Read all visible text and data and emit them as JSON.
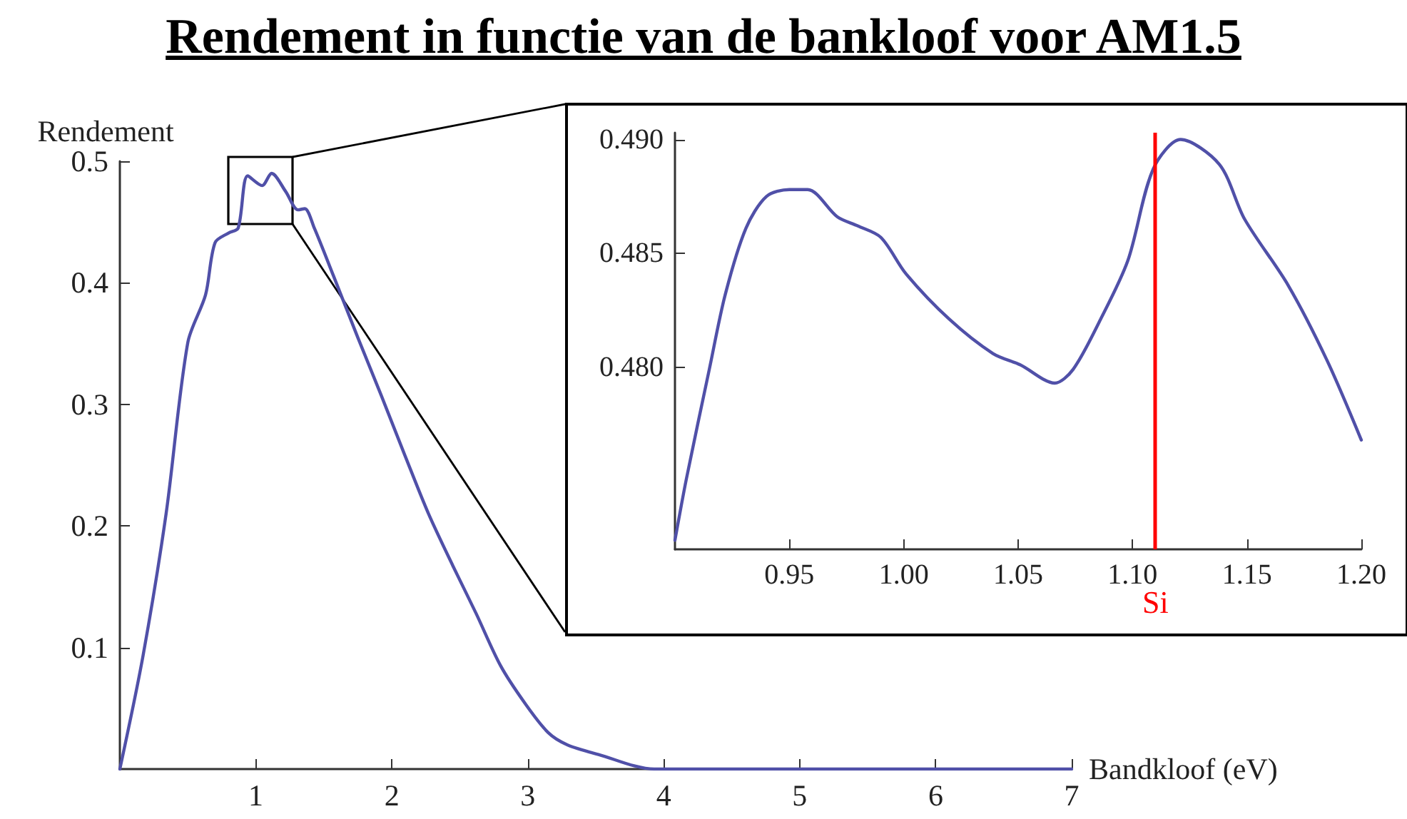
{
  "chart_data": [
    {
      "type": "line",
      "title": "Rendement in functie van de bankloof voor AM1.5",
      "xlabel": "Bandkloof (eV)",
      "ylabel": "Rendement",
      "x": [
        0,
        0.17,
        0.34,
        0.5,
        0.63,
        0.7,
        0.8,
        0.87,
        0.94,
        1.046,
        1.116,
        1.22,
        1.31,
        1.36,
        1.43,
        1.57,
        1.75,
        1.92,
        2.1,
        2.27,
        2.45,
        2.62,
        2.8,
        2.98,
        3.15,
        3.29,
        3.52,
        3.93,
        5,
        7
      ],
      "series": [
        {
          "color": "#5050a8",
          "values": [
            0,
            0.093,
            0.21,
            0.351,
            0.39,
            0.433,
            0.441,
            0.445,
            0.488,
            0.48,
            0.49,
            0.475,
            0.46,
            0.461,
            0.445,
            0.406,
            0.355,
            0.308,
            0.257,
            0.21,
            0.167,
            0.128,
            0.085,
            0.054,
            0.03,
            0.02,
            0.012,
            0,
            0,
            0
          ]
        }
      ],
      "xlim": [
        0,
        7
      ],
      "ylim": [
        0,
        0.5
      ],
      "xticks": [
        1,
        2,
        3,
        4,
        5,
        6,
        7
      ],
      "yticks": [
        0.1,
        0.2,
        0.3,
        0.4,
        0.5
      ],
      "grid": false,
      "marker": "none",
      "line_style": "solid"
    },
    {
      "type": "line",
      "x": [
        0.9,
        0.905,
        0.915,
        0.922,
        0.931,
        0.94,
        0.95,
        0.958,
        0.971,
        0.98,
        0.99,
        1.001,
        1.02,
        1.039,
        1.051,
        1.066,
        1.074,
        1.086,
        1.098,
        1.109,
        1.121,
        1.138,
        1.149,
        1.168,
        1.185,
        1.2
      ],
      "series": [
        {
          "color": "#5050a8",
          "values": [
            0.4724,
            0.4751,
            0.4799,
            0.4832,
            0.4861,
            0.4875,
            0.4878,
            0.4878,
            0.4866,
            0.4862,
            0.4857,
            0.4841,
            0.4821,
            0.4806,
            0.4801,
            0.4793,
            0.4799,
            0.4821,
            0.4847,
            0.4887,
            0.49,
            0.4889,
            0.4865,
            0.4836,
            0.4803,
            0.4768
          ]
        }
      ],
      "xlim": [
        0.9,
        1.2
      ],
      "ylim": [
        0.472,
        0.4903
      ],
      "xticks": [
        0.95,
        {
          "value": 1.0,
          "label": "1.00"
        },
        1.05,
        {
          "value": 1.1,
          "label": "1.10"
        },
        1.15,
        {
          "value": 1.2,
          "label": "1.20"
        }
      ],
      "yticks": [
        {
          "value": 0.48,
          "label": "0.480"
        },
        {
          "value": 0.485,
          "label": "0.485"
        },
        {
          "value": 0.49,
          "label": "0.490"
        }
      ],
      "ref_lines": [
        {
          "axis": "x",
          "value": 1.11,
          "label": "Si",
          "color": "#ff0000"
        }
      ],
      "grid": false,
      "marker": "none",
      "line_style": "solid"
    }
  ]
}
